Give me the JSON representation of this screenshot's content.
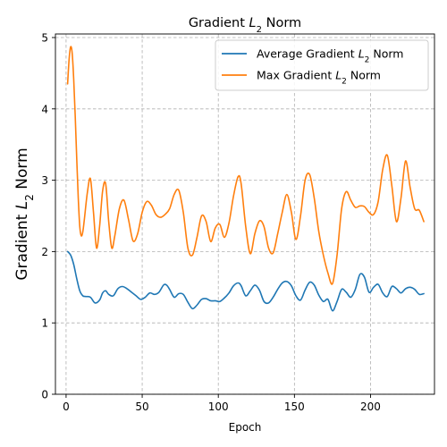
{
  "chart_data": {
    "type": "line",
    "title": "Gradient L2 Norm",
    "xlabel": "Epoch",
    "ylabel": "Gradient L2 Norm",
    "xlim": [
      -7,
      242
    ],
    "ylim": [
      0,
      5.05
    ],
    "xticks": [
      0,
      50,
      100,
      150,
      200
    ],
    "yticks": [
      0,
      1,
      2,
      3,
      4,
      5
    ],
    "grid": true,
    "legend_position": "top-right",
    "series": [
      {
        "name": "Average Gradient L2 Norm",
        "color": "#1f77b4",
        "x": [
          1,
          3,
          5,
          7,
          9,
          11,
          13,
          16,
          19,
          22,
          24,
          26,
          28,
          31,
          34,
          37,
          40,
          43,
          46,
          49,
          52,
          55,
          58,
          61,
          64,
          66,
          68,
          71,
          74,
          77,
          80,
          83,
          86,
          89,
          92,
          95,
          98,
          101,
          104,
          107,
          110,
          113,
          115,
          118,
          121,
          124,
          127,
          130,
          133,
          136,
          139,
          142,
          145,
          148,
          151,
          154,
          157,
          160,
          163,
          166,
          169,
          172,
          175,
          178,
          181,
          184,
          187,
          190,
          193,
          196,
          199,
          202,
          205,
          208,
          211,
          214,
          217,
          220,
          223,
          226,
          229,
          232,
          235
        ],
        "values": [
          2.0,
          1.95,
          1.82,
          1.62,
          1.45,
          1.38,
          1.37,
          1.36,
          1.28,
          1.32,
          1.42,
          1.45,
          1.4,
          1.38,
          1.48,
          1.51,
          1.48,
          1.43,
          1.38,
          1.33,
          1.36,
          1.42,
          1.4,
          1.43,
          1.53,
          1.53,
          1.47,
          1.36,
          1.41,
          1.4,
          1.29,
          1.2,
          1.25,
          1.33,
          1.34,
          1.31,
          1.31,
          1.3,
          1.35,
          1.42,
          1.52,
          1.56,
          1.52,
          1.38,
          1.45,
          1.53,
          1.46,
          1.3,
          1.28,
          1.36,
          1.47,
          1.56,
          1.58,
          1.52,
          1.38,
          1.32,
          1.46,
          1.57,
          1.53,
          1.39,
          1.3,
          1.33,
          1.17,
          1.3,
          1.47,
          1.43,
          1.36,
          1.47,
          1.68,
          1.64,
          1.43,
          1.5,
          1.54,
          1.42,
          1.37,
          1.51,
          1.48,
          1.42,
          1.48,
          1.5,
          1.47,
          1.4,
          1.41
        ]
      },
      {
        "name": "Max Gradient L2 Norm",
        "color": "#ff7f0e",
        "x": [
          1,
          2,
          3,
          4,
          5,
          6,
          7,
          8,
          9,
          10,
          11,
          12,
          14,
          16,
          18,
          20,
          22,
          24,
          26,
          28,
          30,
          32,
          35,
          38,
          41,
          44,
          47,
          50,
          53,
          56,
          59,
          62,
          65,
          68,
          71,
          74,
          77,
          80,
          83,
          86,
          89,
          92,
          95,
          98,
          101,
          104,
          107,
          110,
          113,
          115,
          118,
          121,
          124,
          127,
          130,
          133,
          136,
          139,
          142,
          145,
          148,
          151,
          154,
          157,
          160,
          163,
          166,
          169,
          172,
          175,
          178,
          181,
          184,
          187,
          190,
          193,
          196,
          199,
          202,
          205,
          208,
          211,
          214,
          217,
          220,
          223,
          226,
          229,
          232,
          235
        ],
        "values": [
          4.35,
          4.7,
          4.87,
          4.78,
          4.42,
          3.9,
          3.3,
          2.75,
          2.35,
          2.22,
          2.28,
          2.45,
          2.83,
          3.02,
          2.55,
          2.05,
          2.35,
          2.85,
          2.95,
          2.42,
          2.05,
          2.22,
          2.6,
          2.72,
          2.45,
          2.15,
          2.25,
          2.55,
          2.7,
          2.65,
          2.52,
          2.48,
          2.52,
          2.6,
          2.8,
          2.86,
          2.55,
          2.05,
          1.95,
          2.2,
          2.5,
          2.42,
          2.14,
          2.33,
          2.38,
          2.2,
          2.4,
          2.78,
          3.05,
          2.95,
          2.35,
          1.97,
          2.25,
          2.43,
          2.35,
          2.05,
          1.98,
          2.25,
          2.55,
          2.8,
          2.55,
          2.17,
          2.5,
          3.0,
          3.08,
          2.75,
          2.28,
          1.95,
          1.7,
          1.55,
          1.95,
          2.6,
          2.84,
          2.72,
          2.62,
          2.64,
          2.63,
          2.55,
          2.52,
          2.7,
          3.15,
          3.35,
          2.92,
          2.42,
          2.75,
          3.27,
          2.9,
          2.6,
          2.58,
          2.42
        ]
      }
    ]
  }
}
